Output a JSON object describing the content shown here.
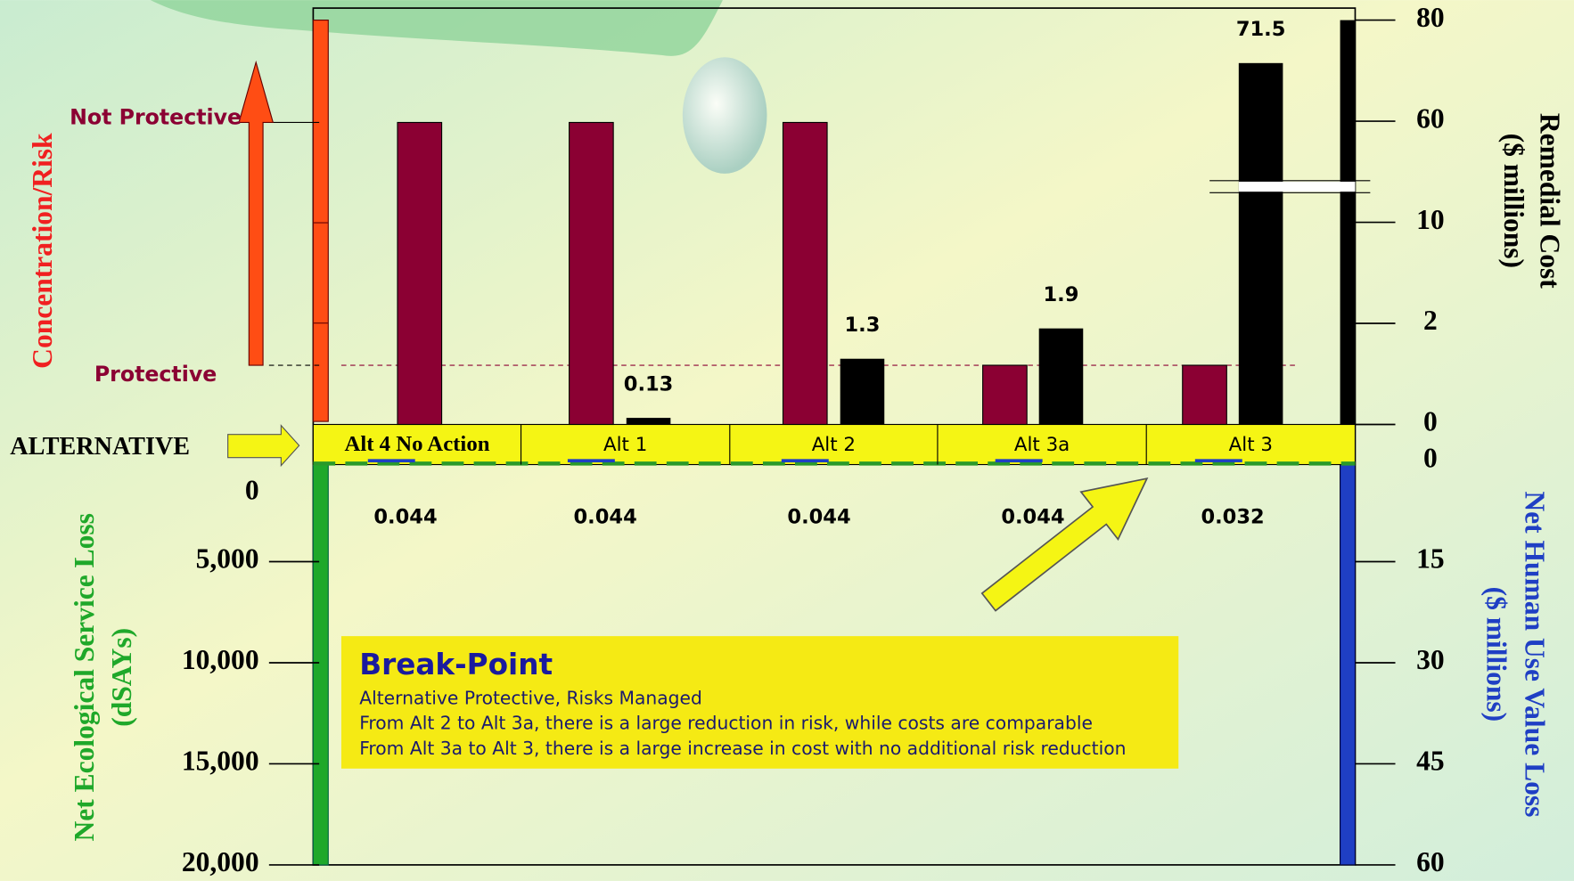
{
  "chart_data": {
    "type": "bar",
    "categories_label": "ALTERNATIVE",
    "categories": [
      "Alt 4 No Action",
      "Alt 1",
      "Alt 2",
      "Alt 3a",
      "Alt 3"
    ],
    "risk": {
      "axis_title": "Concentration/Risk",
      "levels": [
        "Not Protective",
        "Protective"
      ],
      "color": "#8b0033",
      "values": [
        "Not Protective",
        "Not Protective",
        "Not Protective",
        "Protective",
        "Protective"
      ]
    },
    "cost": {
      "axis_title": [
        "Remedial Cost",
        "($ millions)"
      ],
      "color": "#000000",
      "values": [
        null,
        0.13,
        1.3,
        1.9,
        71.5
      ],
      "ylim": [
        0,
        80
      ],
      "yticks": [
        0,
        2,
        10,
        60,
        80
      ],
      "scale": "broken"
    },
    "eco_loss": {
      "axis_title": [
        "Net Ecological Service Loss",
        "(dSAYs)"
      ],
      "ylim": [
        0,
        20000
      ],
      "yticks": [
        0,
        {
          "value": 5000,
          "label": "5,000"
        },
        {
          "value": 10000,
          "label": "10,000"
        },
        {
          "value": 15000,
          "label": "15,000"
        },
        {
          "value": 20000,
          "label": "20,000"
        }
      ],
      "inverted": true
    },
    "human_use_loss": {
      "axis_title": [
        "Net Human Use Value Loss",
        "($ millions)"
      ],
      "color": "#1f3fc4",
      "values": [
        0.044,
        0.044,
        0.044,
        0.044,
        0.032
      ],
      "ylim": [
        0,
        60
      ],
      "yticks": [
        0,
        15,
        30,
        45,
        60
      ],
      "inverted": true
    },
    "annotation": {
      "title": "Break-Point",
      "lines": [
        "Alternative Protective, Risks Managed",
        "From Alt 2 to Alt 3a, there is a large reduction in risk, while costs are comparable",
        "From Alt 3a to Alt 3, there is a large increase in cost with no additional risk reduction"
      ]
    }
  }
}
